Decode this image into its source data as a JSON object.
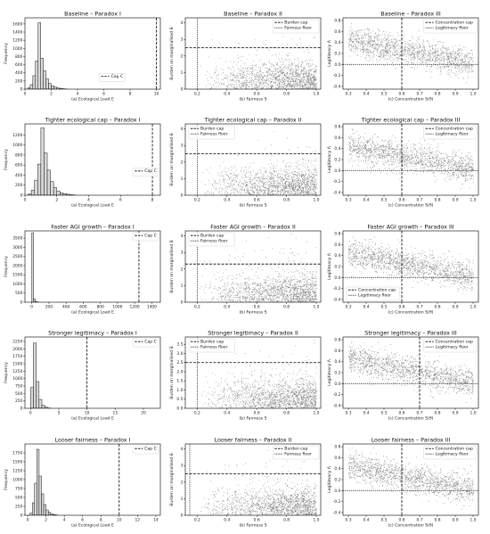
{
  "chart_data": [
    {
      "type": "bar",
      "title": "Baseline – Paradox I",
      "xlabel": "(a) Ecological Load E",
      "ylabel": "Frequency",
      "xlim": [
        0,
        10.3
      ],
      "ylim": [
        0,
        1750
      ],
      "xticks": [
        0,
        2,
        4,
        6,
        8,
        10
      ],
      "yticks": [
        0,
        200,
        400,
        600,
        800,
        1000,
        1200,
        1400,
        1600
      ],
      "bin_width": 0.2,
      "bin_starts": [
        0.2,
        0.4,
        0.6,
        0.8,
        1.0,
        1.2,
        1.4,
        1.6,
        1.8,
        2.0,
        2.2,
        2.4,
        2.6,
        2.8,
        3.0
      ],
      "values": [
        30,
        110,
        330,
        690,
        1630,
        760,
        450,
        250,
        140,
        80,
        50,
        30,
        20,
        10,
        5
      ],
      "vlines": [
        {
          "x": 10,
          "style": "dashed",
          "label": "Cap C"
        }
      ],
      "legend": "lower-center",
      "seed": 11
    },
    {
      "type": "scatter",
      "title": "Baseline – Paradox II",
      "xlabel": "(b) Fairness S",
      "ylabel": "Burden on marginalised B",
      "xlim": [
        0.12,
        1.03
      ],
      "ylim": [
        0,
        4.3
      ],
      "xticks": [
        0.2,
        0.4,
        0.6,
        0.8,
        1.0
      ],
      "yticks": [
        0,
        1,
        2,
        3,
        4
      ],
      "hlines": [
        {
          "y": 2.5,
          "style": "dashed",
          "label": "Burden cap"
        }
      ],
      "vlines": [
        {
          "x": 0.2,
          "style": "dotted",
          "label": "Fairness floor"
        }
      ],
      "legend": "top-right",
      "seed": 21
    },
    {
      "type": "scatter",
      "title": "Baseline – Paradox III",
      "xlabel": "(c) Concentration S(θ)",
      "ylabel": "Legitimacy Λ",
      "xlim": [
        0.27,
        1.03
      ],
      "ylim": [
        -0.45,
        0.85
      ],
      "xticks": [
        0.3,
        0.4,
        0.5,
        0.6,
        0.7,
        0.8,
        0.9,
        1.0
      ],
      "yticks": [
        -0.4,
        -0.2,
        0.0,
        0.2,
        0.4,
        0.6,
        0.8
      ],
      "vlines": [
        {
          "x": 0.6,
          "style": "dashed",
          "label": "Concentration cap"
        }
      ],
      "hlines": [
        {
          "y": 0.0,
          "style": "dotted",
          "label": "Legitimacy floor"
        }
      ],
      "legend": "top-right",
      "seed": 31
    },
    {
      "type": "bar",
      "title": "Tighter ecological cap – Paradox I",
      "xlabel": "(a) Ecological Load E",
      "ylabel": "Frequency",
      "xlim": [
        0,
        8.5
      ],
      "ylim": [
        0,
        1420
      ],
      "xticks": [
        0,
        2,
        4,
        6,
        8
      ],
      "yticks": [
        0,
        200,
        400,
        600,
        800,
        1000,
        1200
      ],
      "bin_width": 0.2,
      "bin_starts": [
        0.2,
        0.4,
        0.6,
        0.8,
        1.0,
        1.2,
        1.4,
        1.6,
        1.8,
        2.0,
        2.2,
        2.4,
        2.6,
        2.8,
        3.0
      ],
      "values": [
        25,
        100,
        300,
        620,
        1340,
        840,
        500,
        270,
        150,
        80,
        50,
        30,
        20,
        10,
        5
      ],
      "vlines": [
        {
          "x": 8,
          "style": "dashed",
          "label": "Cap C"
        }
      ],
      "legend": "center-right",
      "seed": 12
    },
    {
      "type": "scatter",
      "title": "Tighter ecological cap – Paradox II",
      "xlabel": "(b) Fairness S",
      "ylabel": "Burden on marginalised B",
      "xlim": [
        0.12,
        1.03
      ],
      "ylim": [
        0,
        4.3
      ],
      "xticks": [
        0.2,
        0.4,
        0.6,
        0.8,
        1.0
      ],
      "yticks": [
        0,
        1,
        2,
        3,
        4
      ],
      "hlines": [
        {
          "y": 2.5,
          "style": "dashed",
          "label": "Burden cap"
        }
      ],
      "vlines": [
        {
          "x": 0.2,
          "style": "dotted",
          "label": "Fairness floor"
        }
      ],
      "legend": "top-left",
      "seed": 22
    },
    {
      "type": "scatter",
      "title": "Tighter ecological cap – Paradox III",
      "xlabel": "(c) Concentration S(θ)",
      "ylabel": "Legitimacy Λ",
      "xlim": [
        0.27,
        1.03
      ],
      "ylim": [
        -0.45,
        0.85
      ],
      "xticks": [
        0.3,
        0.4,
        0.5,
        0.6,
        0.7,
        0.8,
        0.9,
        1.0
      ],
      "yticks": [
        -0.4,
        -0.2,
        0.0,
        0.2,
        0.4,
        0.6,
        0.8
      ],
      "vlines": [
        {
          "x": 0.6,
          "style": "dashed",
          "label": "Concentration cap"
        }
      ],
      "hlines": [
        {
          "y": 0.0,
          "style": "dotted",
          "label": "Legitimacy floor"
        }
      ],
      "legend": "top-right",
      "seed": 32
    },
    {
      "type": "bar",
      "title": "Faster AGI growth – Paradox I",
      "xlabel": "(a) Ecological Load E",
      "ylabel": "Frequency",
      "xlim": [
        -80,
        1500
      ],
      "ylim": [
        0,
        3900
      ],
      "xticks": [
        0,
        200,
        400,
        600,
        800,
        1000,
        1200,
        1400
      ],
      "yticks": [
        0,
        500,
        1000,
        1500,
        2000,
        2500,
        3000,
        3500
      ],
      "bin_width": 20,
      "bin_starts": [
        0,
        20,
        40,
        60
      ],
      "values": [
        3800,
        180,
        40,
        10
      ],
      "vlines": [
        {
          "x": 1250,
          "style": "dashed",
          "label": "Cap C"
        }
      ],
      "legend": "top-right",
      "seed": 13
    },
    {
      "type": "scatter",
      "title": "Faster AGI growth – Paradox II",
      "xlabel": "(b) Fairness S",
      "ylabel": "Burden on marginalised B",
      "xlim": [
        0.12,
        1.03
      ],
      "ylim": [
        0,
        4.3
      ],
      "xticks": [
        0.2,
        0.4,
        0.6,
        0.8,
        1.0
      ],
      "yticks": [
        0,
        1,
        2,
        3,
        4
      ],
      "hlines": [
        {
          "y": 2.3,
          "style": "dashed",
          "label": "Burden cap"
        }
      ],
      "vlines": [
        {
          "x": 0.2,
          "style": "dotted",
          "label": "Fairness floor"
        }
      ],
      "legend": "top-left",
      "seed": 23
    },
    {
      "type": "scatter",
      "title": "Faster AGI growth – Paradox III",
      "xlabel": "(c) Concentration S(θ)",
      "ylabel": "Legitimacy Λ",
      "xlim": [
        0.27,
        1.03
      ],
      "ylim": [
        -0.45,
        0.85
      ],
      "xticks": [
        0.3,
        0.4,
        0.5,
        0.6,
        0.7,
        0.8,
        0.9,
        1.0
      ],
      "yticks": [
        -0.4,
        -0.2,
        0.0,
        0.2,
        0.4,
        0.6,
        0.8
      ],
      "vlines": [
        {
          "x": 0.6,
          "style": "dashed",
          "label": "Concentration cap"
        }
      ],
      "hlines": [
        {
          "y": 0.0,
          "style": "dotted",
          "label": "Legitimacy floor"
        }
      ],
      "legend": "bottom-left",
      "seed": 33
    },
    {
      "type": "bar",
      "title": "Stronger legitimacy – Paradox I",
      "xlabel": "(a) Ecological Load E",
      "ylabel": "Frequency",
      "xlim": [
        -1,
        23
      ],
      "ylim": [
        0,
        2400
      ],
      "xticks": [
        0,
        5,
        10,
        15,
        20
      ],
      "yticks": [
        0,
        250,
        500,
        750,
        1000,
        1250,
        1500,
        1750,
        2000,
        2250
      ],
      "bin_width": 0.5,
      "bin_starts": [
        0,
        0.5,
        1.0,
        1.5,
        2.0,
        2.5,
        3.0
      ],
      "values": [
        700,
        2200,
        900,
        300,
        100,
        40,
        10
      ],
      "vlines": [
        {
          "x": 10,
          "style": "dashed",
          "label": "Cap C"
        }
      ],
      "legend": "top-right",
      "seed": 14
    },
    {
      "type": "scatter",
      "title": "Stronger legitimacy – Paradox II",
      "xlabel": "(b) Fairness S",
      "ylabel": "Burden on marginalised B",
      "xlim": [
        0.12,
        1.03
      ],
      "ylim": [
        0,
        3.9
      ],
      "xticks": [
        0.2,
        0.4,
        0.6,
        0.8,
        1.0
      ],
      "yticks": [
        0.0,
        0.5,
        1.0,
        1.5,
        2.0,
        2.5,
        3.0,
        3.5
      ],
      "hlines": [
        {
          "y": 2.5,
          "style": "dashed",
          "label": "Burden cap"
        }
      ],
      "vlines": [
        {
          "x": 0.2,
          "style": "dotted",
          "label": "Fairness floor"
        }
      ],
      "legend": "top-left",
      "seed": 24
    },
    {
      "type": "scatter",
      "title": "Stronger legitimacy – Paradox III",
      "xlabel": "(c) Concentration S(θ)",
      "ylabel": "Legitimacy Λ",
      "xlim": [
        0.27,
        1.03
      ],
      "ylim": [
        -0.45,
        0.85
      ],
      "xticks": [
        0.3,
        0.4,
        0.5,
        0.6,
        0.7,
        0.8,
        0.9,
        1.0
      ],
      "yticks": [
        -0.4,
        -0.2,
        0.0,
        0.2,
        0.4,
        0.6,
        0.8
      ],
      "vlines": [
        {
          "x": 0.7,
          "style": "dashed",
          "label": "Concentration cap"
        }
      ],
      "hlines": [
        {
          "y": 0.0,
          "style": "dotted",
          "label": "Legitimacy floor"
        }
      ],
      "legend": "top-right",
      "seed": 34
    },
    {
      "type": "bar",
      "title": "Looser fairness – Paradox I",
      "xlabel": "(a) Ecological Load E",
      "ylabel": "Frequency",
      "xlim": [
        -0.3,
        14.5
      ],
      "ylim": [
        0,
        2000
      ],
      "xticks": [
        0,
        2,
        4,
        6,
        8,
        10,
        12,
        14
      ],
      "yticks": [
        0,
        250,
        500,
        750,
        1000,
        1250,
        1500,
        1750
      ],
      "bin_width": 0.25,
      "bin_starts": [
        0.25,
        0.5,
        0.75,
        1.0,
        1.25,
        1.5,
        1.75,
        2.0,
        2.25,
        2.5,
        2.75,
        3.0
      ],
      "values": [
        60,
        350,
        900,
        1850,
        1100,
        600,
        300,
        150,
        80,
        40,
        20,
        10
      ],
      "vlines": [
        {
          "x": 10,
          "style": "dashed",
          "label": "Cap C"
        }
      ],
      "legend": "top-right",
      "seed": 15
    },
    {
      "type": "scatter",
      "title": "Looser fairness – Paradox II",
      "xlabel": "(b) Fairness S",
      "ylabel": "Burden on marginalised B",
      "xlim": [
        0.12,
        1.03
      ],
      "ylim": [
        0,
        4.3
      ],
      "xticks": [
        0.2,
        0.4,
        0.6,
        0.8,
        1.0
      ],
      "yticks": [
        0,
        1,
        2,
        3,
        4
      ],
      "hlines": [
        {
          "y": 2.5,
          "style": "dashed",
          "label": "Burden cap"
        }
      ],
      "vlines": [
        {
          "x": 0.15,
          "style": "dotted",
          "label": "Fairness floor"
        }
      ],
      "legend": "top-right",
      "seed": 25
    },
    {
      "type": "scatter",
      "title": "Looser fairness – Paradox III",
      "xlabel": "(c) Concentration S(θ)",
      "ylabel": "Legitimacy Λ",
      "xlim": [
        0.27,
        1.03
      ],
      "ylim": [
        -0.45,
        0.85
      ],
      "xticks": [
        0.3,
        0.4,
        0.5,
        0.6,
        0.7,
        0.8,
        0.9,
        1.0
      ],
      "yticks": [
        -0.4,
        -0.2,
        0.0,
        0.2,
        0.4,
        0.6,
        0.8
      ],
      "vlines": [
        {
          "x": 0.6,
          "style": "dashed",
          "label": "Concentration cap"
        }
      ],
      "hlines": [
        {
          "y": 0.0,
          "style": "dotted",
          "label": "Legitimacy floor"
        }
      ],
      "legend": "top-right",
      "seed": 35
    }
  ]
}
